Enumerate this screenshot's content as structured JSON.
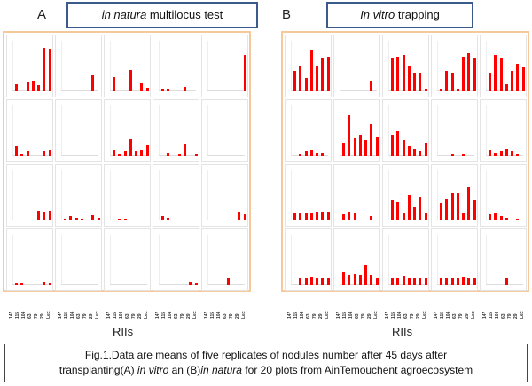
{
  "panels": [
    {
      "letter": "A",
      "title_italic": "in natura",
      "title_rest": " multilocus test"
    },
    {
      "letter": "B",
      "title_italic": "In vitro",
      "title_rest": " trapping"
    }
  ],
  "xlabel": "RIIs",
  "caption": {
    "l1": "Fig.1.Data are means of five replicates of nodules number after 45 days after",
    "l2a": "transplanting(A) ",
    "l2b": "in vitro",
    "l2c": " an (B)",
    "l2d": "in natura",
    "l2e": " for 20 plots from AinTemouchent agroecosystem"
  },
  "chart_data": [
    {
      "type": "bar",
      "panel": "A",
      "categories": [
        "147",
        "115",
        "104",
        "63",
        "79",
        "29",
        "Lec"
      ],
      "ylim": [
        0,
        6
      ],
      "xlabel": "RIIs",
      "plots": [
        [
          1,
          0,
          1.2,
          1.4,
          0.8,
          6,
          5.9
        ],
        [
          0,
          0,
          0,
          0,
          0,
          2.2,
          0
        ],
        [
          2,
          0,
          0,
          2.9,
          0,
          1.1,
          0.5
        ],
        [
          0.2,
          0.4,
          0,
          0,
          0.6,
          0,
          0
        ],
        [
          0,
          0,
          0,
          0,
          0,
          0,
          5
        ],
        [
          1.4,
          0.2,
          0.7,
          0,
          0,
          0.7,
          0.9
        ],
        [
          0,
          0,
          0,
          0,
          0,
          0,
          0
        ],
        [
          0.8,
          0.2,
          0.6,
          2.3,
          0.7,
          0.9,
          1.5
        ],
        [
          0,
          0.4,
          0,
          0.2,
          1.6,
          0,
          0.2
        ],
        [
          0,
          0,
          0,
          0,
          0,
          0,
          0
        ],
        [
          0,
          0,
          0,
          0,
          1.3,
          1.1,
          1.4
        ],
        [
          0.3,
          0.6,
          0.4,
          0.2,
          0,
          0.7,
          0.4
        ],
        [
          0,
          0.2,
          0.3,
          0,
          0,
          0,
          0
        ],
        [
          0.6,
          0.4,
          0,
          0,
          0,
          0,
          0
        ],
        [
          0,
          0,
          0,
          0,
          0,
          1.2,
          0.8
        ],
        [
          0.2,
          0.2,
          0,
          0,
          0,
          0.4,
          0.2
        ],
        [
          0,
          0,
          0,
          0,
          0,
          0,
          0
        ],
        [
          0,
          0,
          0,
          0,
          0,
          0,
          0
        ],
        [
          0,
          0,
          0,
          0,
          0,
          0.4,
          0.2
        ],
        [
          0,
          0,
          0,
          1,
          0,
          0,
          0
        ]
      ]
    },
    {
      "type": "bar",
      "panel": "B",
      "categories": [
        "147",
        "115",
        "104",
        "63",
        "79",
        "29",
        "Lec"
      ],
      "ylim": [
        0,
        6
      ],
      "xlabel": "RIIs",
      "plots": [
        [
          2.8,
          3.6,
          1.8,
          5.8,
          3.4,
          4.6,
          4.8
        ],
        [
          0,
          0,
          0,
          0,
          0,
          1.4,
          0
        ],
        [
          4.6,
          4.8,
          5,
          3.6,
          2.6,
          2.4,
          0.2
        ],
        [
          0.4,
          2.8,
          2.6,
          0.4,
          4.8,
          5.3,
          4.6
        ],
        [
          2.5,
          5,
          4.6,
          1,
          2.8,
          3.8,
          3.3
        ],
        [
          0,
          0.2,
          0.6,
          0.8,
          0.4,
          0.4,
          0
        ],
        [
          1.8,
          5.6,
          2.4,
          3,
          2.2,
          4.4,
          2.6
        ],
        [
          2.8,
          3.4,
          2.2,
          1.4,
          1,
          0.6,
          1.8
        ],
        [
          0,
          0,
          0.2,
          0,
          0.2,
          0,
          0
        ],
        [
          0.8,
          0.4,
          0.6,
          1,
          0.6,
          0.2,
          0
        ],
        [
          1,
          1,
          1,
          1,
          1.1,
          1.1,
          1.1
        ],
        [
          0.8,
          1.2,
          1,
          0,
          0,
          0.6,
          0
        ],
        [
          2.8,
          2.6,
          1,
          3.5,
          1.8,
          3.3,
          1
        ],
        [
          2.5,
          3,
          3.8,
          3.8,
          1,
          4.6,
          2.8
        ],
        [
          0.8,
          1,
          0.6,
          0.4,
          0,
          0.2,
          0
        ],
        [
          0,
          1,
          1,
          1.1,
          1,
          1,
          1
        ],
        [
          1.8,
          1.3,
          1.6,
          1.3,
          2.8,
          1.4,
          1
        ],
        [
          1,
          1,
          1.2,
          1,
          1,
          1,
          1
        ],
        [
          1,
          1,
          1,
          1,
          1.1,
          1,
          1
        ],
        [
          0,
          0,
          0,
          1,
          0,
          0,
          0
        ]
      ]
    }
  ]
}
